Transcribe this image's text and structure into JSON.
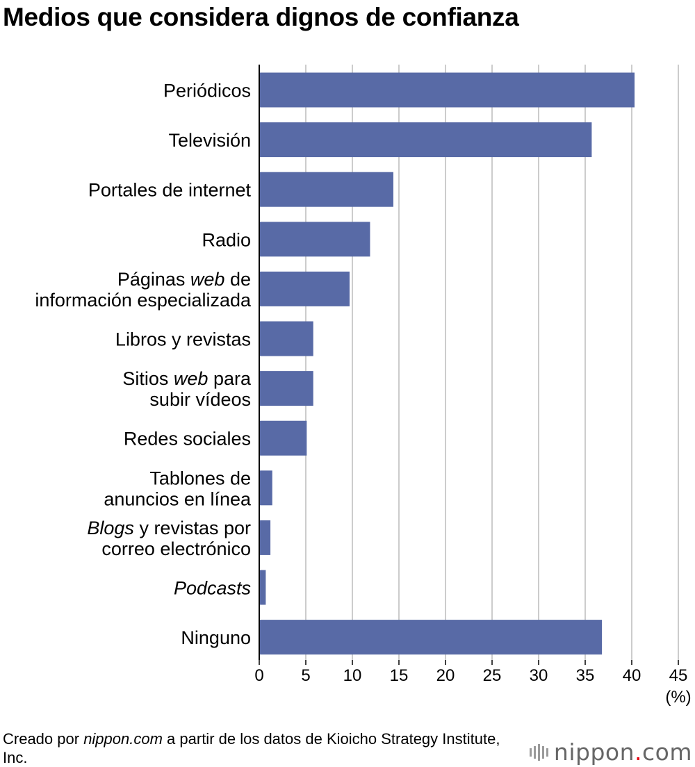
{
  "chart_data": {
    "type": "bar",
    "orientation": "horizontal",
    "title": "Medios que considera dignos de confianza",
    "unit_label": "(%)",
    "xlim": [
      0,
      45
    ],
    "x_ticks": [
      0,
      5,
      10,
      15,
      20,
      25,
      30,
      35,
      40,
      45
    ],
    "grid": true,
    "categories": [
      [
        "Periódicos"
      ],
      [
        "Televisión"
      ],
      [
        "Portales de internet"
      ],
      [
        "Radio"
      ],
      [
        [
          "Páginas ",
          ""
        ],
        [
          "web",
          "i"
        ],
        [
          " de",
          ""
        ],
        "|",
        [
          "información especializada",
          ""
        ]
      ],
      [
        "Libros y revistas"
      ],
      [
        [
          "Sitios ",
          ""
        ],
        [
          "web",
          "i"
        ],
        [
          " para",
          ""
        ],
        "|",
        [
          "subir vídeos",
          ""
        ]
      ],
      [
        "Redes sociales"
      ],
      [
        [
          "Tablones de",
          ""
        ],
        "|",
        [
          "anuncios en línea",
          ""
        ]
      ],
      [
        [
          "Blogs",
          "i"
        ],
        [
          " y revistas por",
          ""
        ],
        "|",
        [
          "correo electrónico",
          ""
        ]
      ],
      [
        [
          "Podcasts",
          "i"
        ]
      ],
      [
        "Ninguno"
      ]
    ],
    "values": [
      40.3,
      35.7,
      14.4,
      11.9,
      9.7,
      5.8,
      5.8,
      5.1,
      1.4,
      1.2,
      0.7,
      36.8
    ],
    "bar_color": "#586aa6"
  },
  "source": {
    "prefix": "Creado por ",
    "site": "nippon.com",
    "suffix": " a partir de los datos de Kioicho Strategy Institute, Inc."
  },
  "logo": {
    "name": "nippon",
    "dot": ".",
    "tld": "com"
  }
}
